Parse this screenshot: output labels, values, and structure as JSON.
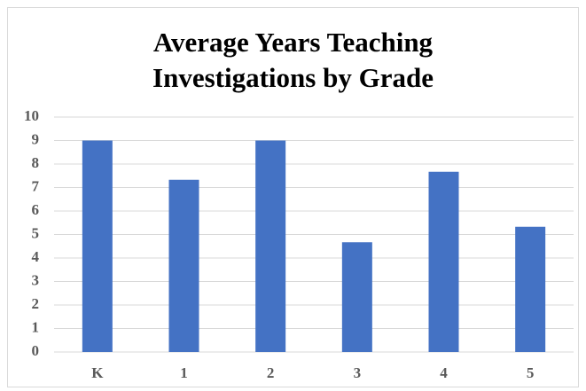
{
  "chart_data": {
    "type": "bar",
    "title": "Average Years Teaching Investigations by Grade",
    "categories": [
      "K",
      "1",
      "2",
      "3",
      "4",
      "5"
    ],
    "values": [
      9,
      7.33,
      9,
      4.67,
      7.67,
      5.33
    ],
    "color": "#4472c4",
    "ylim": [
      0,
      10
    ],
    "yticks": [
      0,
      1,
      2,
      3,
      4,
      5,
      6,
      7,
      8,
      9,
      10
    ],
    "grid": true
  }
}
